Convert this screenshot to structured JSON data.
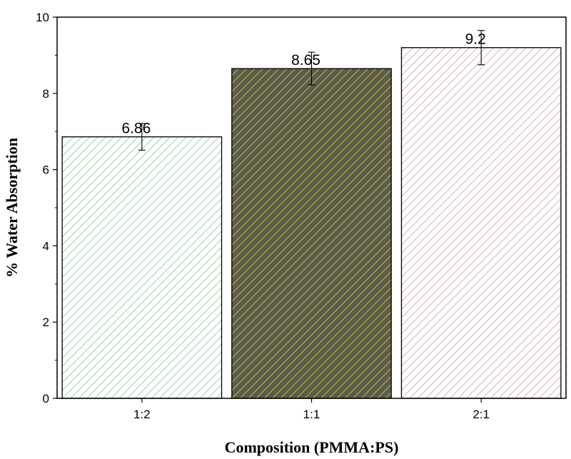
{
  "chart_data": {
    "type": "bar",
    "title": "",
    "xlabel": "Composition (PMMA:PS)",
    "ylabel": "% Water Absorption",
    "categories": [
      "1:2",
      "1:1",
      "2:1"
    ],
    "values": [
      6.86,
      8.65,
      9.2
    ],
    "data_labels": [
      "6.86",
      "8.65",
      "9.2"
    ],
    "error": [
      0.35,
      0.43,
      0.45
    ],
    "ylim": [
      0,
      10
    ],
    "yticks": [
      0,
      2,
      4,
      6,
      8,
      10
    ],
    "grid": false,
    "bar_styles": [
      {
        "fill": "#ffffff",
        "hatch": "#7ec89a"
      },
      {
        "fill": "#5c5c4c",
        "hatch": "#d9d23a"
      },
      {
        "fill": "#ffffff",
        "hatch": "#d49aa0"
      }
    ]
  }
}
